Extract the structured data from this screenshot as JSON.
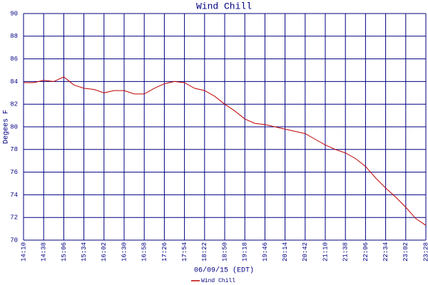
{
  "chart_data": {
    "type": "line",
    "title": "Wind Chill",
    "x_label": "06/09/15 (EDT)",
    "y_label": "Degees F",
    "categories": [
      "14:10",
      null,
      "14:38",
      null,
      "15:06",
      null,
      "15:34",
      null,
      "16:02",
      null,
      "16:30",
      null,
      "16:58",
      null,
      "17:26",
      null,
      "17:54",
      null,
      "18:22",
      null,
      "18:50",
      null,
      "19:18",
      null,
      "19:46",
      null,
      "20:14",
      null,
      "20:42",
      null,
      "21:10",
      null,
      "21:38",
      null,
      "22:06",
      null,
      "22:34",
      null,
      "23:02",
      null,
      "23:28"
    ],
    "series": [
      {
        "name": "Wind Chill",
        "color": "#c00000",
        "values": [
          83.9,
          83.9,
          84.1,
          84.0,
          84.4,
          83.7,
          83.4,
          83.3,
          83.0,
          83.2,
          83.2,
          82.9,
          82.9,
          83.4,
          83.8,
          84.0,
          83.9,
          83.4,
          83.2,
          82.7,
          82.0,
          81.4,
          80.7,
          80.3,
          80.2,
          80.0,
          79.8,
          79.6,
          79.4,
          78.9,
          78.4,
          78.0,
          77.7,
          77.2,
          76.5,
          75.5,
          74.6,
          73.8,
          72.9,
          71.9,
          71.3
        ]
      }
    ],
    "ylim": [
      70,
      90
    ],
    "yticks": [
      70,
      72,
      74,
      76,
      78,
      80,
      82,
      84,
      86,
      88,
      90
    ],
    "grid": true,
    "grid_color": "#000080",
    "legend": "bottom"
  }
}
